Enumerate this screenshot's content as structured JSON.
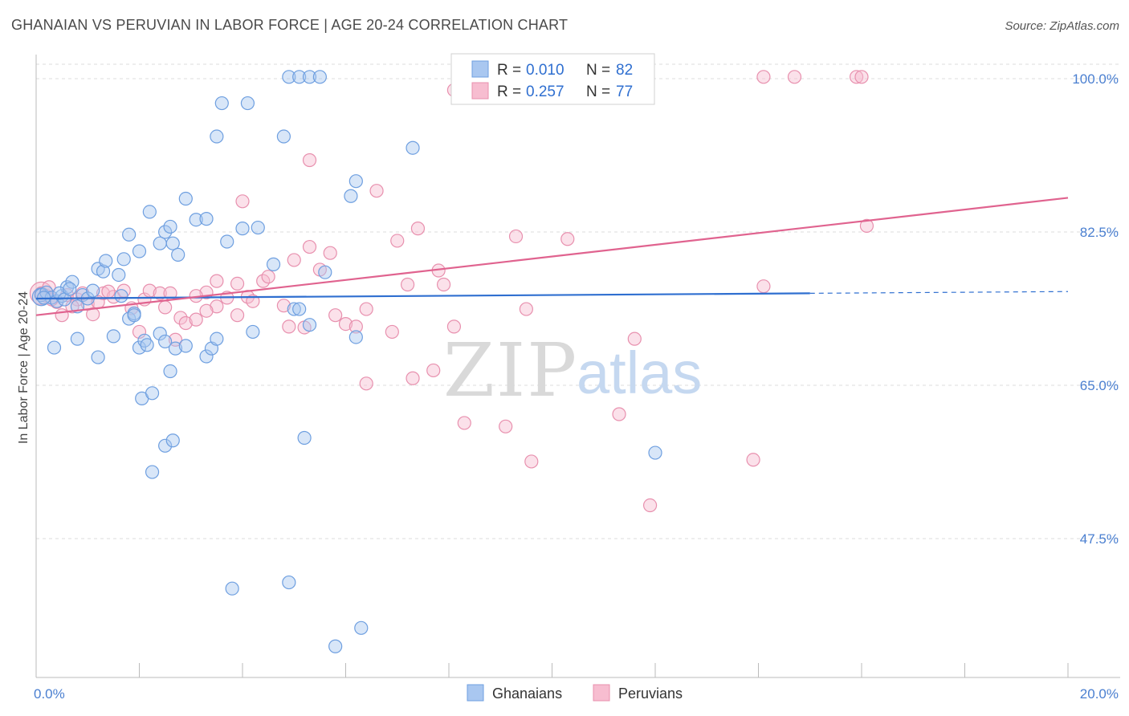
{
  "header": {
    "title": "GHANAIAN VS PERUVIAN IN LABOR FORCE | AGE 20-24 CORRELATION CHART",
    "source": "Source: ZipAtlas.com"
  },
  "watermark": {
    "zip": "ZIP",
    "atlas": "atlas"
  },
  "legend": {
    "rows": [
      {
        "r_label": "R =",
        "r_value": "0.010",
        "n_label": "N =",
        "n_value": "82"
      },
      {
        "r_label": "R =",
        "r_value": "0.257",
        "n_label": "N =",
        "n_value": "77"
      }
    ]
  },
  "bottom_legend": {
    "items": [
      "Ghanaians",
      "Peruvians"
    ]
  },
  "colors": {
    "blue_fill": "#a9c7f0",
    "blue_stroke": "#6e9fe0",
    "blue_line": "#2f6fd0",
    "pink_fill": "#f7bdd0",
    "pink_stroke": "#e890ae",
    "pink_line": "#e0638f",
    "tick": "#4a7fd0",
    "grid": "#d8d8d8"
  },
  "chart_data": {
    "type": "scatter",
    "title": "GHANAIAN VS PERUVIAN IN LABOR FORCE | AGE 20-24 CORRELATION CHART",
    "xlabel": "",
    "ylabel": "In Labor Force | Age 20-24",
    "xlim": [
      0,
      20
    ],
    "ylim": [
      33,
      101
    ],
    "x_ticks": [
      0,
      2,
      4,
      6,
      8,
      10,
      12,
      14,
      16,
      18,
      20
    ],
    "x_tick_labels": [
      {
        "value": 0,
        "label": "0.0%"
      },
      {
        "value": 20,
        "label": "20.0%"
      }
    ],
    "y_ticks": [
      {
        "value": 100,
        "label": "100.0%"
      },
      {
        "value": 82.5,
        "label": "82.5%"
      },
      {
        "value": 65,
        "label": "65.0%"
      },
      {
        "value": 47.5,
        "label": "47.5%"
      }
    ],
    "grid": true,
    "legend_position": "top-center",
    "series": [
      {
        "name": "Ghanaians",
        "color": "#a9c7f0",
        "r": 0.01,
        "n": 82,
        "trend": {
          "x": [
            0,
            15
          ],
          "y": [
            74.9,
            75.5
          ],
          "dashed_to": 20,
          "dashed_y": 75.7
        },
        "points": [
          [
            0.1,
            75.3
          ],
          [
            0.2,
            75.6
          ],
          [
            0.3,
            75.0
          ],
          [
            0.4,
            74.6
          ],
          [
            0.5,
            75.2
          ],
          [
            0.6,
            76.2
          ],
          [
            0.7,
            76.8
          ],
          [
            0.8,
            74.0
          ],
          [
            0.9,
            75.3
          ],
          [
            1.0,
            74.9
          ],
          [
            1.1,
            75.8
          ],
          [
            1.2,
            78.3
          ],
          [
            1.3,
            78.0
          ],
          [
            1.35,
            79.2
          ],
          [
            1.6,
            77.6
          ],
          [
            1.7,
            79.4
          ],
          [
            1.8,
            82.2
          ],
          [
            2.0,
            80.3
          ],
          [
            2.2,
            84.8
          ],
          [
            2.4,
            81.2
          ],
          [
            2.5,
            82.5
          ],
          [
            2.6,
            83.1
          ],
          [
            2.65,
            81.2
          ],
          [
            2.75,
            79.9
          ],
          [
            2.9,
            86.3
          ],
          [
            3.1,
            83.9
          ],
          [
            3.3,
            84.0
          ],
          [
            3.5,
            93.4
          ],
          [
            3.6,
            97.2
          ],
          [
            3.7,
            81.4
          ],
          [
            4.0,
            82.9
          ],
          [
            4.1,
            97.2
          ],
          [
            4.3,
            83.0
          ],
          [
            4.8,
            93.4
          ],
          [
            4.9,
            100.2
          ],
          [
            5.1,
            100.2
          ],
          [
            5.3,
            100.2
          ],
          [
            5.5,
            100.2
          ],
          [
            4.6,
            78.8
          ],
          [
            5.0,
            73.7
          ],
          [
            5.1,
            73.7
          ],
          [
            5.3,
            71.9
          ],
          [
            5.6,
            77.9
          ],
          [
            6.1,
            86.6
          ],
          [
            6.2,
            88.3
          ],
          [
            6.2,
            70.5
          ],
          [
            7.3,
            92.1
          ],
          [
            0.35,
            69.3
          ],
          [
            0.8,
            70.3
          ],
          [
            1.2,
            68.2
          ],
          [
            1.5,
            70.6
          ],
          [
            1.8,
            72.6
          ],
          [
            1.9,
            73.2
          ],
          [
            2.0,
            69.3
          ],
          [
            2.1,
            70.1
          ],
          [
            2.15,
            69.6
          ],
          [
            2.4,
            70.9
          ],
          [
            2.5,
            70.0
          ],
          [
            2.6,
            66.6
          ],
          [
            2.7,
            69.2
          ],
          [
            2.9,
            69.5
          ],
          [
            3.3,
            68.3
          ],
          [
            3.4,
            69.2
          ],
          [
            3.5,
            70.3
          ],
          [
            4.2,
            71.1
          ],
          [
            2.05,
            63.5
          ],
          [
            2.25,
            64.1
          ],
          [
            2.5,
            58.1
          ],
          [
            2.65,
            58.7
          ],
          [
            2.25,
            55.1
          ],
          [
            3.8,
            41.8
          ],
          [
            4.9,
            42.5
          ],
          [
            6.3,
            37.3
          ],
          [
            5.8,
            35.2
          ],
          [
            12.0,
            57.3
          ],
          [
            5.2,
            59.0
          ],
          [
            1.65,
            75.2
          ],
          [
            1.9,
            73.0
          ],
          [
            0.15,
            75.0
          ],
          [
            0.45,
            75.5
          ],
          [
            0.55,
            74.8
          ],
          [
            0.65,
            76.0
          ]
        ]
      },
      {
        "name": "Peruvians",
        "color": "#f7bdd0",
        "r": 0.257,
        "n": 77,
        "trend": {
          "x": [
            0,
            20
          ],
          "y": [
            73.0,
            86.4
          ]
        },
        "points": [
          [
            0.1,
            75.5
          ],
          [
            0.2,
            75.2
          ],
          [
            0.3,
            75.0
          ],
          [
            0.4,
            74.5
          ],
          [
            0.5,
            73.0
          ],
          [
            0.6,
            75.3
          ],
          [
            0.8,
            74.8
          ],
          [
            1.0,
            74.3
          ],
          [
            1.1,
            73.1
          ],
          [
            1.3,
            75.5
          ],
          [
            1.5,
            75.1
          ],
          [
            1.7,
            75.8
          ],
          [
            1.85,
            73.8
          ],
          [
            2.1,
            74.8
          ],
          [
            2.2,
            75.8
          ],
          [
            2.4,
            75.5
          ],
          [
            2.5,
            73.9
          ],
          [
            2.6,
            75.5
          ],
          [
            2.8,
            72.7
          ],
          [
            2.9,
            72.1
          ],
          [
            3.1,
            72.5
          ],
          [
            3.3,
            75.6
          ],
          [
            3.5,
            74.0
          ],
          [
            3.5,
            76.9
          ],
          [
            3.7,
            75.0
          ],
          [
            3.9,
            76.6
          ],
          [
            3.9,
            73.0
          ],
          [
            4.1,
            75.1
          ],
          [
            4.2,
            74.6
          ],
          [
            4.4,
            76.9
          ],
          [
            4.5,
            77.4
          ],
          [
            4.8,
            74.1
          ],
          [
            4.9,
            71.7
          ],
          [
            5.0,
            79.3
          ],
          [
            5.2,
            71.6
          ],
          [
            5.3,
            80.8
          ],
          [
            5.5,
            78.2
          ],
          [
            5.7,
            80.1
          ],
          [
            5.8,
            73.0
          ],
          [
            6.0,
            72.0
          ],
          [
            6.2,
            71.7
          ],
          [
            6.4,
            73.7
          ],
          [
            6.6,
            87.2
          ],
          [
            6.9,
            71.1
          ],
          [
            7.0,
            81.5
          ],
          [
            7.2,
            76.5
          ],
          [
            7.4,
            82.9
          ],
          [
            7.7,
            66.7
          ],
          [
            7.8,
            78.1
          ],
          [
            7.9,
            76.5
          ],
          [
            8.1,
            71.7
          ],
          [
            8.3,
            60.7
          ],
          [
            9.1,
            60.3
          ],
          [
            9.3,
            82.0
          ],
          [
            9.6,
            56.3
          ],
          [
            9.5,
            73.7
          ],
          [
            10.3,
            81.7
          ],
          [
            11.3,
            61.7
          ],
          [
            11.6,
            70.3
          ],
          [
            11.9,
            51.3
          ],
          [
            13.9,
            56.5
          ],
          [
            14.1,
            76.3
          ],
          [
            16.1,
            83.2
          ],
          [
            7.3,
            65.8
          ],
          [
            6.4,
            65.2
          ],
          [
            5.3,
            90.7
          ],
          [
            4.0,
            86.0
          ],
          [
            3.1,
            75.2
          ],
          [
            3.3,
            73.5
          ],
          [
            0.3,
            74.8
          ],
          [
            0.7,
            74.0
          ],
          [
            0.9,
            75.5
          ],
          [
            1.4,
            75.7
          ],
          [
            1.2,
            74.5
          ],
          [
            2.0,
            71.1
          ],
          [
            2.7,
            70.2
          ],
          [
            0.25,
            76.2
          ]
        ],
        "top_points": [
          [
            8.1,
            98.7
          ],
          [
            8.2,
            100.2
          ],
          [
            8.9,
            100.2
          ],
          [
            9.3,
            100.2
          ],
          [
            10.3,
            100.2
          ],
          [
            11.8,
            100.2
          ],
          [
            14.1,
            100.2
          ],
          [
            14.7,
            100.2
          ],
          [
            15.9,
            100.2
          ],
          [
            16.0,
            100.2
          ]
        ]
      }
    ]
  }
}
